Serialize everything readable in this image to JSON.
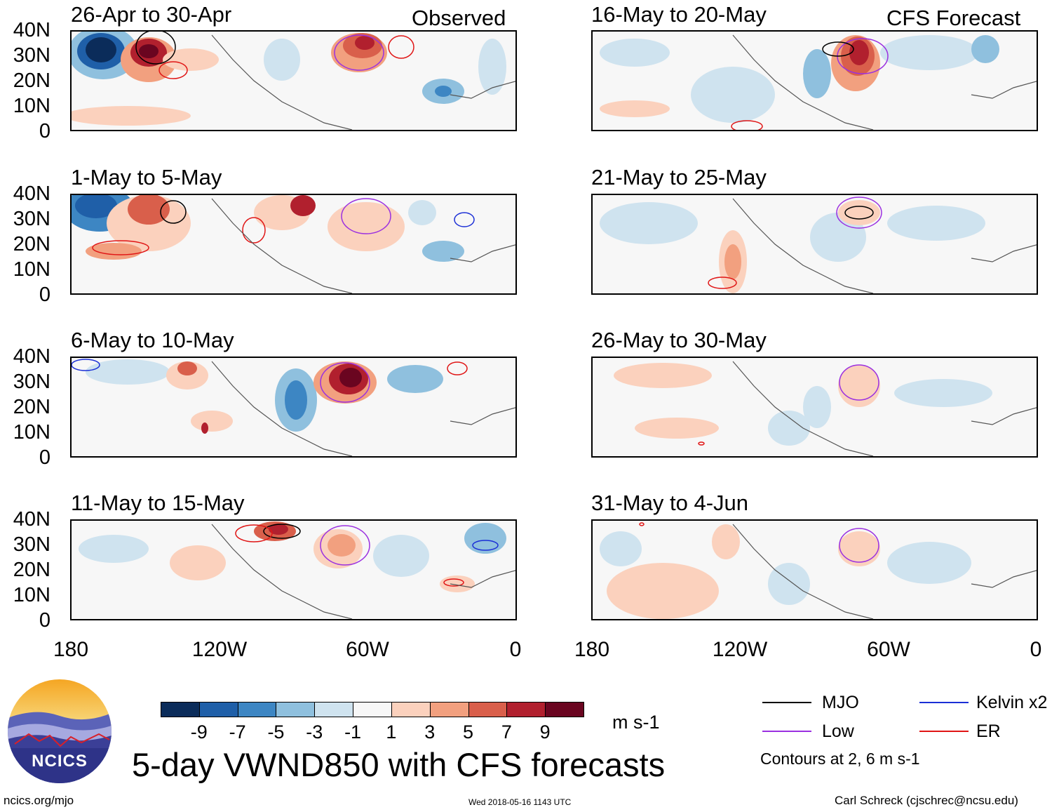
{
  "observed_label": "Observed",
  "forecast_label": "CFS Forecast",
  "panels": {
    "left": [
      "26-Apr to 30-Apr",
      "1-May to 5-May",
      "6-May to 10-May",
      "11-May to 15-May"
    ],
    "right": [
      "16-May to 20-May",
      "21-May to 25-May",
      "26-May to 30-May",
      "31-May to 4-Jun"
    ]
  },
  "y_ticks": [
    "40N",
    "30N",
    "20N",
    "10N",
    "0"
  ],
  "x_ticks": [
    "180",
    "120W",
    "60W",
    "0"
  ],
  "colorbar": {
    "labels": [
      "-9",
      "-7",
      "-5",
      "-3",
      "-1",
      "1",
      "3",
      "5",
      "7",
      "9"
    ],
    "units": "m s-1",
    "colors": [
      "#0b2c5a",
      "#1f5fa8",
      "#3d86c3",
      "#8fc0de",
      "#cfe3ef",
      "#f7f7f7",
      "#fbd1bd",
      "#f2a07f",
      "#d95f4b",
      "#b1202e",
      "#6a0520"
    ]
  },
  "title": "5-day VWND850 with CFS forecasts",
  "legend": {
    "items": [
      {
        "label": "MJO",
        "color": "#000000"
      },
      {
        "label": "Kelvin x2",
        "color": "#1b2fd6"
      },
      {
        "label": "Low",
        "color": "#9b30e0"
      },
      {
        "label": "ER",
        "color": "#e01515"
      }
    ],
    "note": "Contours at 2, 6 m s-1"
  },
  "logo_text": "NCICS",
  "footer": {
    "url": "ncics.org/mjo",
    "timestamp": "Wed 2018-05-16 1143 UTC",
    "author": "Carl Schreck (cjschrec@ncsu.edu)"
  }
}
